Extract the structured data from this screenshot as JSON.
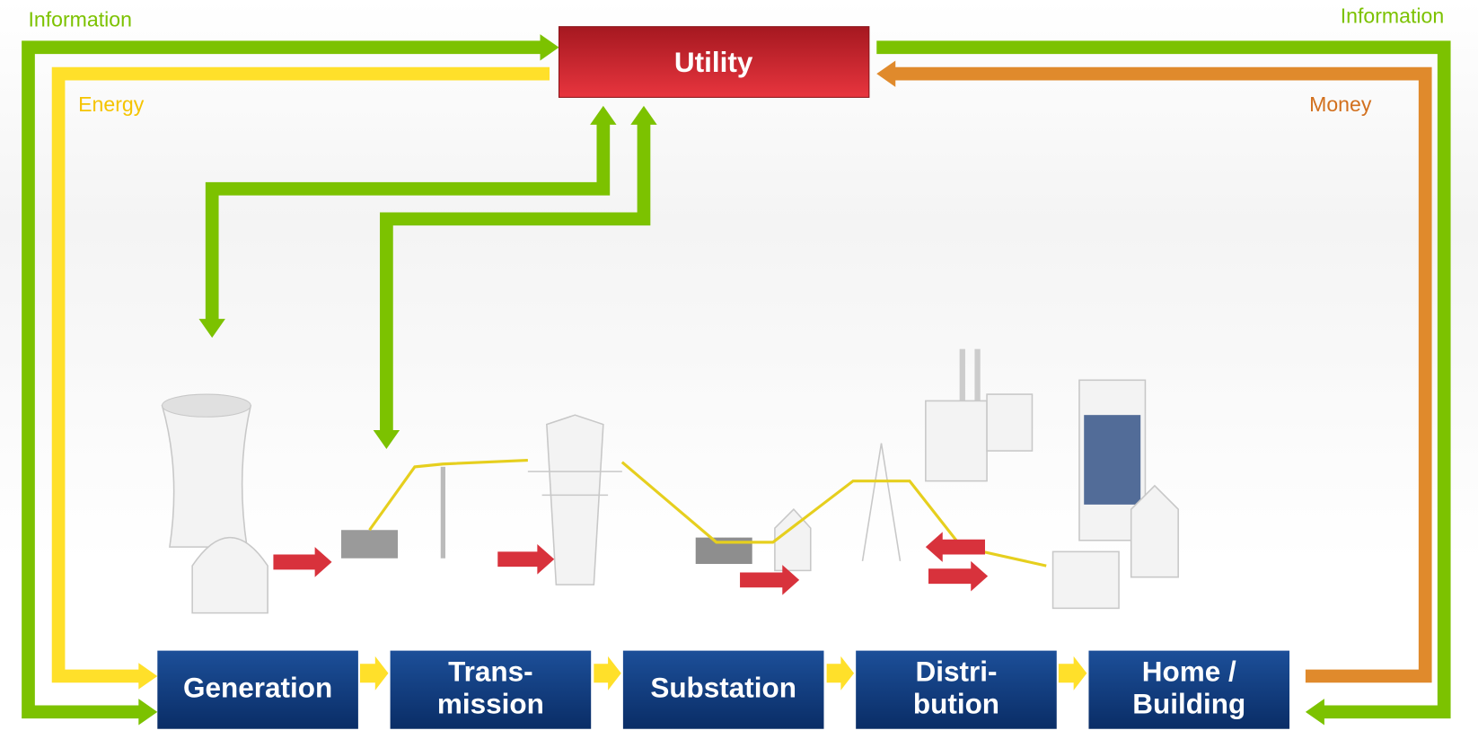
{
  "labels": {
    "info_left": "Information",
    "info_right": "Information",
    "energy": "Energy",
    "money": "Money"
  },
  "utility": "Utility",
  "stages": [
    {
      "lines": [
        "Generation"
      ]
    },
    {
      "lines": [
        "Trans-",
        "mission"
      ]
    },
    {
      "lines": [
        "Substation"
      ]
    },
    {
      "lines": [
        "Distri-",
        "bution"
      ]
    },
    {
      "lines": [
        "Home /",
        "Building"
      ]
    }
  ]
}
